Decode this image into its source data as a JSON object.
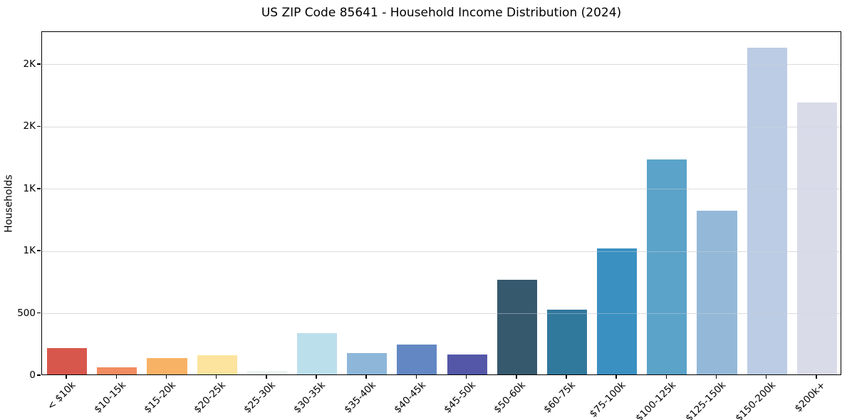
{
  "chart_data": {
    "type": "bar",
    "title": "US ZIP Code 85641 - Household Income Distribution (2024)",
    "xlabel": "",
    "ylabel": "Households",
    "ylim": [
      0,
      2763
    ],
    "grid": true,
    "legend": false,
    "categories": [
      "< $10k",
      "$10-15k",
      "$15-20k",
      "$20-25k",
      "$25-30k",
      "$30-35k",
      "$35-40k",
      "$40-45k",
      "$45-50k",
      "$50-60k",
      "$60-75k",
      "$75-100k",
      "$100-125k",
      "$125-150k",
      "$150-200k",
      "$200k+"
    ],
    "values": [
      210,
      60,
      132,
      152,
      26,
      332,
      173,
      242,
      160,
      760,
      520,
      1012,
      1728,
      1314,
      2628,
      2186
    ],
    "bar_colors": [
      "#d8574d",
      "#f28c61",
      "#f8b266",
      "#fce49e",
      "#ecf5f1",
      "#bbdfeb",
      "#8db6d9",
      "#6387c3",
      "#5457a8",
      "#36596e",
      "#31789d",
      "#3a90c1",
      "#5ba3c9",
      "#94b9d8",
      "#bbcce4",
      "#d9dbe9"
    ],
    "yticks": [
      {
        "value": 0,
        "label": "0"
      },
      {
        "value": 500,
        "label": "500"
      },
      {
        "value": 1000,
        "label": "1K"
      },
      {
        "value": 1500,
        "label": "1K"
      },
      {
        "value": 2000,
        "label": "2K"
      },
      {
        "value": 2500,
        "label": "2K"
      }
    ],
    "bar_width_fraction": 0.8
  },
  "colors": {
    "background": "#ffffff",
    "spine": "#000000",
    "grid": "#e4e4ea",
    "text": "#000000"
  }
}
